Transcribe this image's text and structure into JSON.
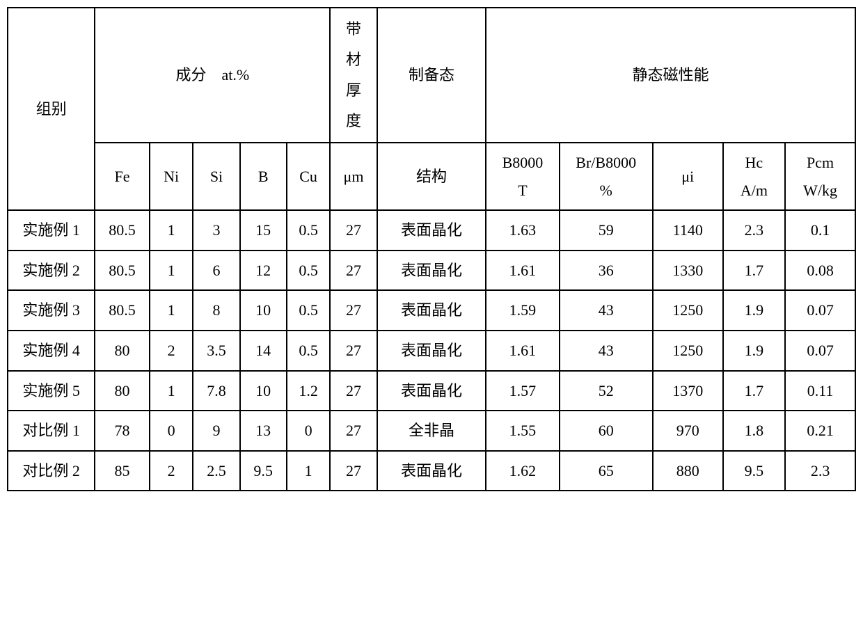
{
  "headers": {
    "group": "组别",
    "composition": "成分　at.%",
    "thickness_top": "带材厚度",
    "thickness_unit": "μm",
    "prep_top": "制备态",
    "prep_sub": "结构",
    "static_mag": "静态磁性能",
    "comp_sub": {
      "Fe": "Fe",
      "Ni": "Ni",
      "Si": "Si",
      "B": "B",
      "Cu": "Cu"
    },
    "mag_sub": {
      "B8000": "B8000",
      "B8000_unit": "T",
      "Br": "Br/B8000",
      "Br_unit": "%",
      "mui": "μi",
      "Hc": "Hc",
      "Hc_unit": "A/m",
      "Pcm": "Pcm",
      "Pcm_unit": "W/kg"
    }
  },
  "rows": [
    {
      "group": "实施例 1",
      "Fe": "80.5",
      "Ni": "1",
      "Si": "3",
      "B": "15",
      "Cu": "0.5",
      "thk": "27",
      "prep": "表面晶化",
      "B8000": "1.63",
      "Br": "59",
      "mui": "1140",
      "Hc": "2.3",
      "Pcm": "0.1"
    },
    {
      "group": "实施例 2",
      "Fe": "80.5",
      "Ni": "1",
      "Si": "6",
      "B": "12",
      "Cu": "0.5",
      "thk": "27",
      "prep": "表面晶化",
      "B8000": "1.61",
      "Br": "36",
      "mui": "1330",
      "Hc": "1.7",
      "Pcm": "0.08"
    },
    {
      "group": "实施例 3",
      "Fe": "80.5",
      "Ni": "1",
      "Si": "8",
      "B": "10",
      "Cu": "0.5",
      "thk": "27",
      "prep": "表面晶化",
      "B8000": "1.59",
      "Br": "43",
      "mui": "1250",
      "Hc": "1.9",
      "Pcm": "0.07"
    },
    {
      "group": "实施例 4",
      "Fe": "80",
      "Ni": "2",
      "Si": "3.5",
      "B": "14",
      "Cu": "0.5",
      "thk": "27",
      "prep": "表面晶化",
      "B8000": "1.61",
      "Br": "43",
      "mui": "1250",
      "Hc": "1.9",
      "Pcm": "0.07"
    },
    {
      "group": "实施例 5",
      "Fe": "80",
      "Ni": "1",
      "Si": "7.8",
      "B": "10",
      "Cu": "1.2",
      "thk": "27",
      "prep": "表面晶化",
      "B8000": "1.57",
      "Br": "52",
      "mui": "1370",
      "Hc": "1.7",
      "Pcm": "0.11"
    },
    {
      "group": "对比例 1",
      "Fe": "78",
      "Ni": "0",
      "Si": "9",
      "B": "13",
      "Cu": "0",
      "thk": "27",
      "prep": "全非晶",
      "B8000": "1.55",
      "Br": "60",
      "mui": "970",
      "Hc": "1.8",
      "Pcm": "0.21"
    },
    {
      "group": "对比例 2",
      "Fe": "85",
      "Ni": "2",
      "Si": "2.5",
      "B": "9.5",
      "Cu": "1",
      "thk": "27",
      "prep": "表面晶化",
      "B8000": "1.62",
      "Br": "65",
      "mui": "880",
      "Hc": "9.5",
      "Pcm": "2.3"
    }
  ],
  "colwidths": {
    "group": 112,
    "Fe": 70,
    "Ni": 56,
    "Si": 60,
    "B": 60,
    "Cu": 56,
    "thk": 60,
    "prep": 140,
    "B8000": 94,
    "Br": 120,
    "mui": 90,
    "Hc": 80,
    "Pcm": 90
  },
  "style": {
    "border_color": "#000000",
    "background": "#ffffff",
    "font_size": 22
  }
}
